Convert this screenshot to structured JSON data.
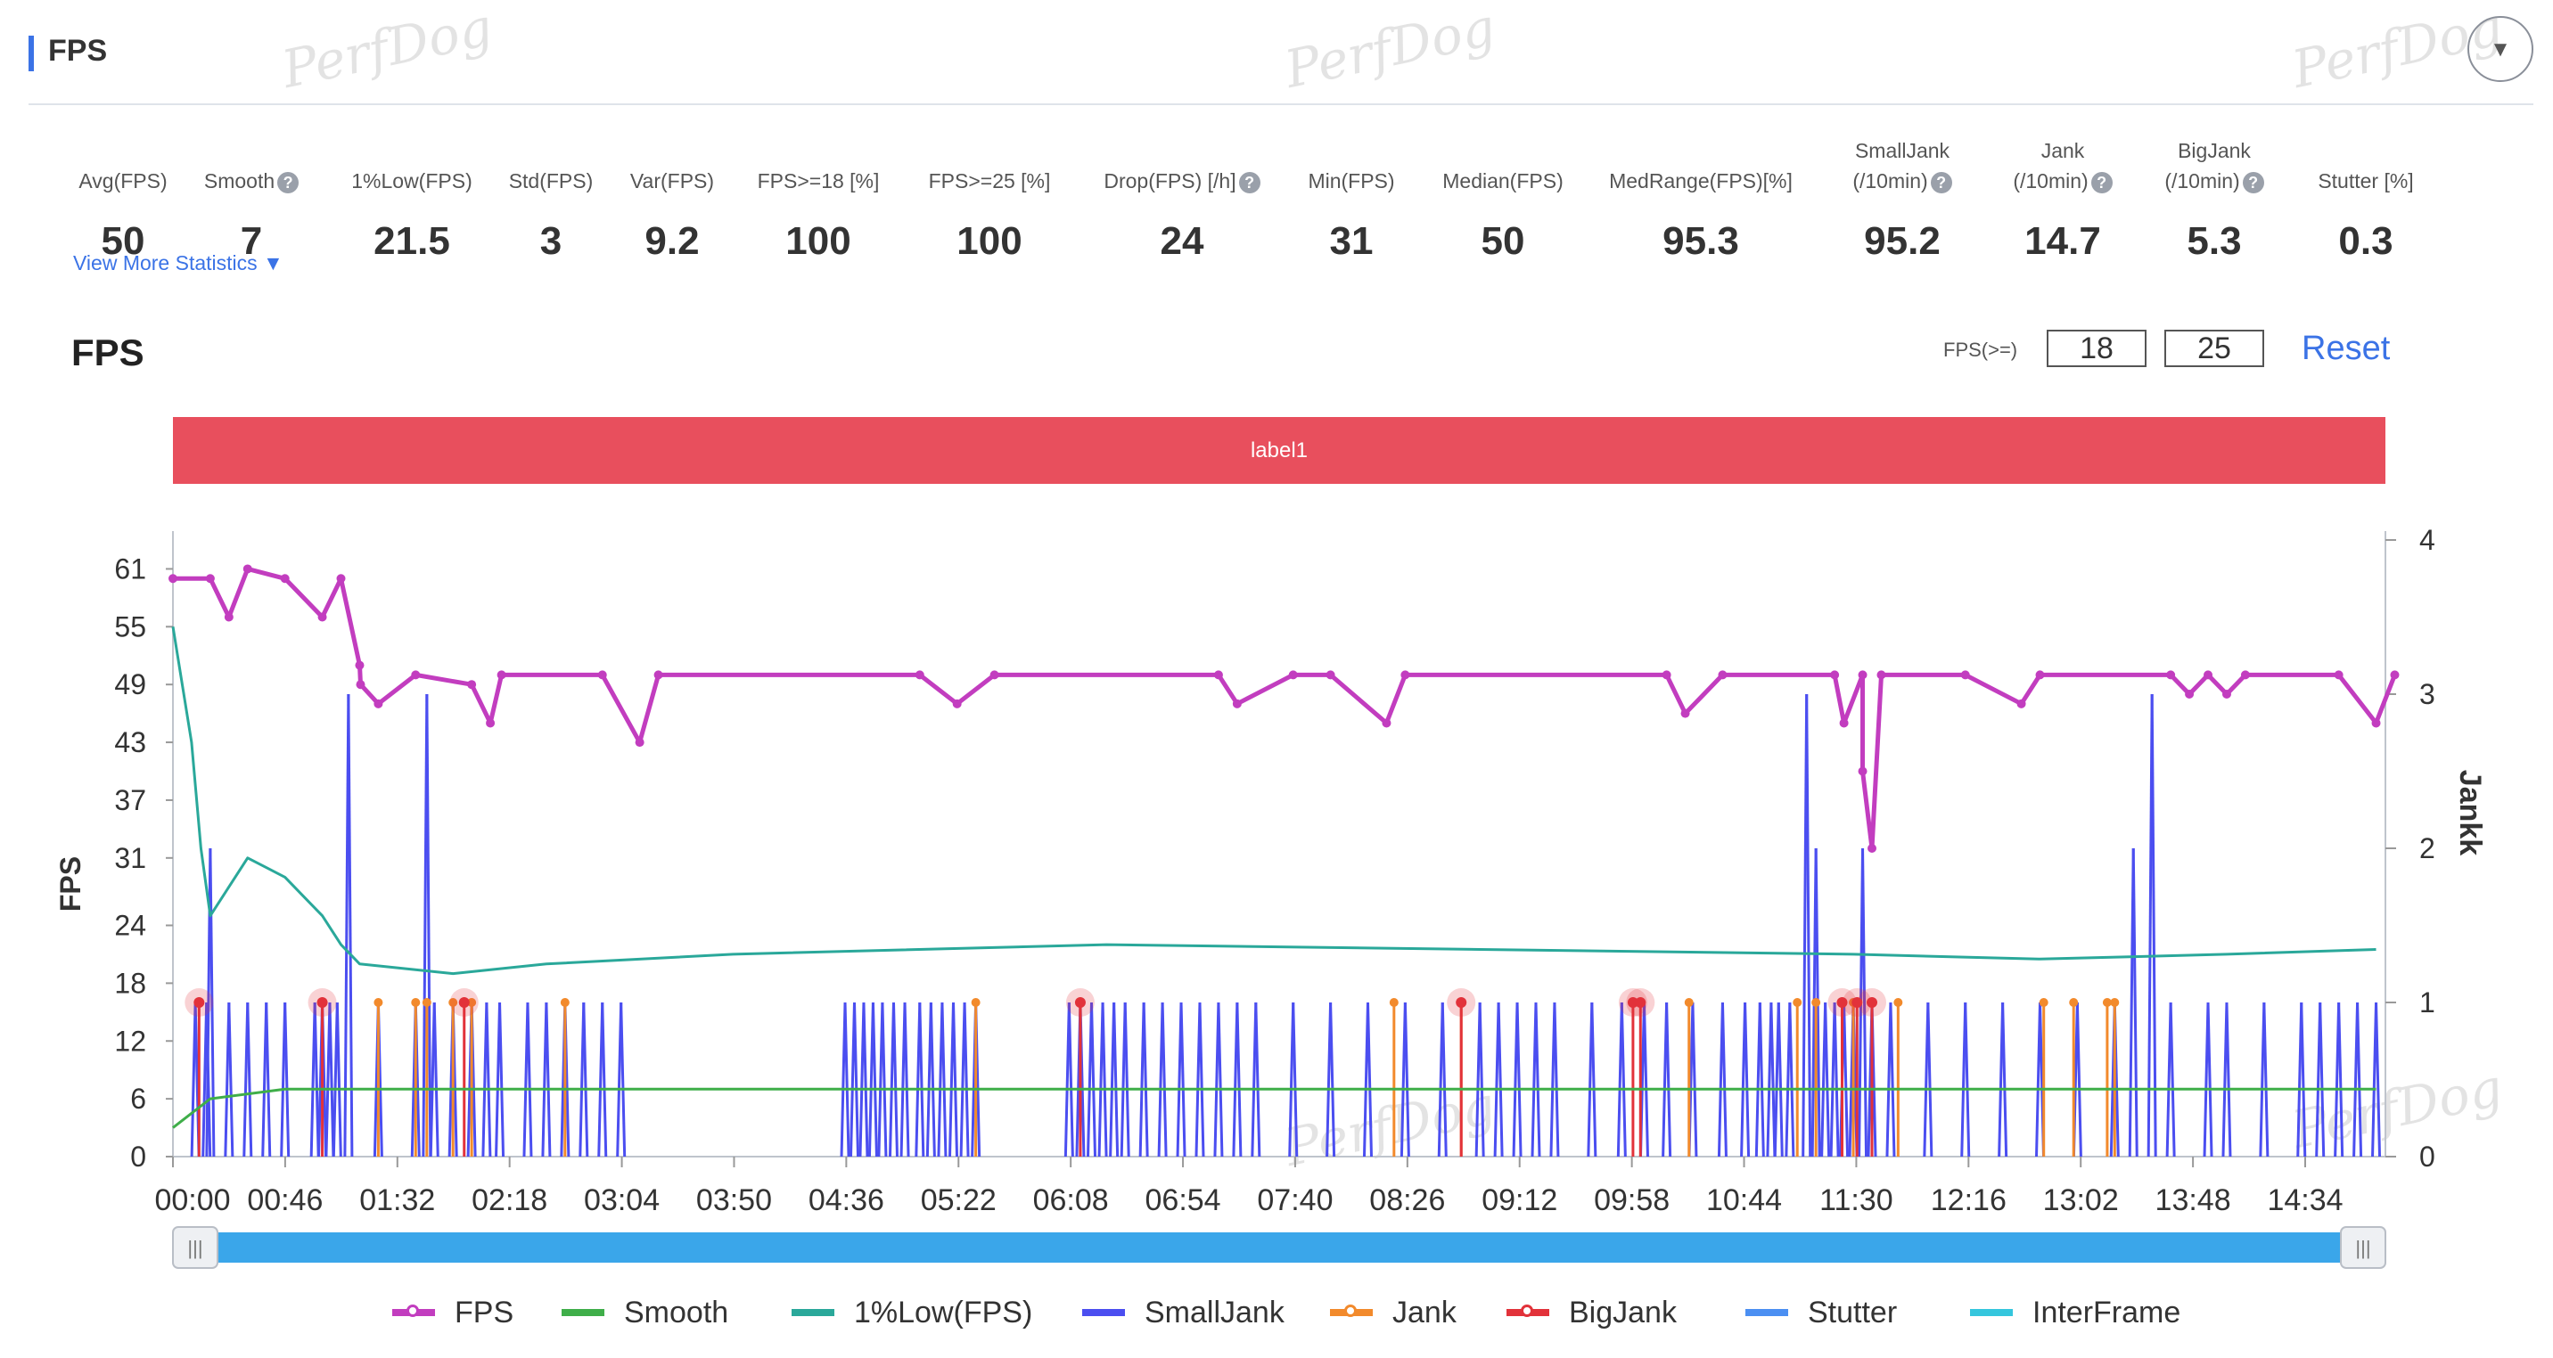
{
  "header": {
    "title": "FPS"
  },
  "watermark": "PerfDog",
  "stats": [
    {
      "label": "Avg(FPS)",
      "value": "50",
      "help": false
    },
    {
      "label": "Smooth",
      "value": "7",
      "help": true
    },
    {
      "label": "1%Low(FPS)",
      "value": "21.5",
      "help": false
    },
    {
      "label": "Std(FPS)",
      "value": "3",
      "help": false
    },
    {
      "label": "Var(FPS)",
      "value": "9.2",
      "help": false
    },
    {
      "label": "FPS>=18 [%]",
      "value": "100",
      "help": false
    },
    {
      "label": "FPS>=25 [%]",
      "value": "100",
      "help": false
    },
    {
      "label": "Drop(FPS) [/h]",
      "value": "24",
      "help": true
    },
    {
      "label": "Min(FPS)",
      "value": "31",
      "help": false
    },
    {
      "label": "Median(FPS)",
      "value": "50",
      "help": false
    },
    {
      "label": "MedRange(FPS)[%]",
      "value": "95.3",
      "help": false
    },
    {
      "label": "SmallJank",
      "label2": "(/10min)",
      "value": "95.2",
      "help": true
    },
    {
      "label": "Jank",
      "label2": "(/10min)",
      "value": "14.7",
      "help": true
    },
    {
      "label": "BigJank",
      "label2": "(/10min)",
      "value": "5.3",
      "help": true
    },
    {
      "label": "Stutter [%]",
      "value": "0.3",
      "help": false
    }
  ],
  "view_more": "View More Statistics ▼",
  "chart_title": "FPS",
  "threshold": {
    "label": "FPS(>=)",
    "low": "18",
    "high": "25"
  },
  "reset": "Reset",
  "label_band": "label1",
  "colors": {
    "fps": "#c23dbf",
    "smooth": "#3fae49",
    "low1": "#2aa89a",
    "smalljank": "#4b4ef0",
    "jank": "#f28a2c",
    "bigjank": "#e2323a",
    "stutter": "#4b8ff2",
    "interframe": "#35c6dd",
    "accent": "#3b73e6",
    "band": "#e84f5d",
    "slider": "#3aa6ea"
  },
  "chart_data": {
    "type": "line",
    "x_unit": "mm:ss",
    "x_ticks": [
      "00:00",
      "00:46",
      "01:32",
      "02:18",
      "03:04",
      "03:50",
      "04:36",
      "05:22",
      "06:08",
      "06:54",
      "07:40",
      "08:26",
      "09:12",
      "09:58",
      "10:44",
      "11:30",
      "12:16",
      "13:02",
      "13:48",
      "14:34"
    ],
    "ylabel": "FPS",
    "y_ticks": [
      0,
      6,
      12,
      18,
      24,
      31,
      37,
      43,
      49,
      55,
      61
    ],
    "ylim": [
      0,
      64
    ],
    "y2label": "Jankk",
    "y2_ticks": [
      0,
      1,
      2,
      3,
      4
    ],
    "y2lim": [
      0,
      4
    ],
    "series": [
      {
        "name": "FPS",
        "axis": "left",
        "points": [
          [
            0,
            60
          ],
          [
            20,
            60
          ],
          [
            30,
            56
          ],
          [
            40,
            61
          ],
          [
            60,
            60
          ],
          [
            80,
            56
          ],
          [
            90,
            60
          ],
          [
            100,
            51
          ],
          [
            100.5,
            49
          ],
          [
            110,
            47
          ],
          [
            130,
            50
          ],
          [
            160,
            49
          ],
          [
            170,
            45
          ],
          [
            176,
            50
          ],
          [
            230,
            50
          ],
          [
            250,
            43
          ],
          [
            260,
            50
          ],
          [
            400,
            50
          ],
          [
            420,
            47
          ],
          [
            440,
            50
          ],
          [
            560,
            50
          ],
          [
            570,
            47
          ],
          [
            600,
            50
          ],
          [
            620,
            50
          ],
          [
            650,
            45
          ],
          [
            660,
            50
          ],
          [
            800,
            50
          ],
          [
            810,
            46
          ],
          [
            830,
            50
          ],
          [
            890,
            50
          ],
          [
            895,
            45
          ],
          [
            905,
            50
          ],
          [
            905,
            40
          ],
          [
            910,
            32
          ],
          [
            915,
            50
          ],
          [
            960,
            50
          ],
          [
            990,
            47
          ],
          [
            1000,
            50
          ],
          [
            1070,
            50
          ],
          [
            1080,
            48
          ],
          [
            1090,
            50
          ],
          [
            1100,
            48
          ],
          [
            1110,
            50
          ],
          [
            1160,
            50
          ],
          [
            1180,
            45
          ],
          [
            1190,
            50
          ]
        ]
      },
      {
        "name": "Smooth",
        "axis": "left",
        "points": [
          [
            0,
            3
          ],
          [
            20,
            6
          ],
          [
            60,
            7
          ],
          [
            200,
            7
          ],
          [
            250,
            7
          ],
          [
            400,
            7
          ],
          [
            600,
            7
          ],
          [
            900,
            7
          ],
          [
            1100,
            7
          ],
          [
            1180,
            7
          ]
        ]
      },
      {
        "name": "1%Low(FPS)",
        "axis": "left",
        "points": [
          [
            0,
            55
          ],
          [
            10,
            43
          ],
          [
            15,
            32
          ],
          [
            20,
            25
          ],
          [
            30,
            28
          ],
          [
            40,
            31
          ],
          [
            50,
            30
          ],
          [
            60,
            29
          ],
          [
            70,
            27
          ],
          [
            80,
            25
          ],
          [
            90,
            22
          ],
          [
            100,
            20
          ],
          [
            150,
            19
          ],
          [
            200,
            20
          ],
          [
            300,
            21
          ],
          [
            500,
            22
          ],
          [
            700,
            21.5
          ],
          [
            900,
            21
          ],
          [
            1000,
            20.5
          ],
          [
            1100,
            21
          ],
          [
            1180,
            21.5
          ]
        ]
      },
      {
        "name": "SmallJank",
        "axis": "right",
        "spikes": [
          [
            12,
            1
          ],
          [
            18,
            1
          ],
          [
            20,
            2
          ],
          [
            30,
            1
          ],
          [
            40,
            1
          ],
          [
            50,
            1
          ],
          [
            60,
            1
          ],
          [
            76,
            1
          ],
          [
            80,
            1
          ],
          [
            84,
            1
          ],
          [
            88,
            1
          ],
          [
            94,
            3
          ],
          [
            110,
            1
          ],
          [
            130,
            1
          ],
          [
            136,
            3
          ],
          [
            140,
            1
          ],
          [
            150,
            1
          ],
          [
            160,
            1
          ],
          [
            168,
            1
          ],
          [
            175,
            1
          ],
          [
            190,
            1
          ],
          [
            200,
            1
          ],
          [
            210,
            1
          ],
          [
            220,
            1
          ],
          [
            230,
            1
          ],
          [
            240,
            1
          ],
          [
            360,
            1
          ],
          [
            365,
            1
          ],
          [
            370,
            1
          ],
          [
            375,
            1
          ],
          [
            380,
            1
          ],
          [
            386,
            1
          ],
          [
            392,
            1
          ],
          [
            400,
            1
          ],
          [
            406,
            1
          ],
          [
            412,
            1
          ],
          [
            418,
            1
          ],
          [
            424,
            1
          ],
          [
            430,
            1
          ],
          [
            480,
            1
          ],
          [
            486,
            1
          ],
          [
            492,
            1
          ],
          [
            498,
            1
          ],
          [
            504,
            1
          ],
          [
            510,
            1
          ],
          [
            520,
            1
          ],
          [
            530,
            1
          ],
          [
            540,
            1
          ],
          [
            550,
            1
          ],
          [
            560,
            1
          ],
          [
            570,
            1
          ],
          [
            580,
            1
          ],
          [
            600,
            1
          ],
          [
            620,
            1
          ],
          [
            640,
            1
          ],
          [
            660,
            1
          ],
          [
            680,
            1
          ],
          [
            700,
            1
          ],
          [
            710,
            1
          ],
          [
            720,
            1
          ],
          [
            730,
            1
          ],
          [
            740,
            1
          ],
          [
            760,
            1
          ],
          [
            776,
            1
          ],
          [
            788,
            1
          ],
          [
            800,
            1
          ],
          [
            814,
            1
          ],
          [
            830,
            1
          ],
          [
            842,
            1
          ],
          [
            850,
            1
          ],
          [
            856,
            1
          ],
          [
            860,
            1
          ],
          [
            866,
            1
          ],
          [
            875,
            3
          ],
          [
            880,
            2
          ],
          [
            885,
            1
          ],
          [
            890,
            1
          ],
          [
            895,
            1
          ],
          [
            900,
            1
          ],
          [
            905,
            2
          ],
          [
            910,
            1
          ],
          [
            920,
            1
          ],
          [
            940,
            1
          ],
          [
            960,
            1
          ],
          [
            980,
            1
          ],
          [
            1000,
            1
          ],
          [
            1020,
            1
          ],
          [
            1040,
            1
          ],
          [
            1050,
            2
          ],
          [
            1060,
            3
          ],
          [
            1070,
            1
          ],
          [
            1090,
            1
          ],
          [
            1100,
            1
          ],
          [
            1120,
            1
          ],
          [
            1140,
            1
          ],
          [
            1150,
            1
          ],
          [
            1160,
            1
          ],
          [
            1170,
            1
          ],
          [
            1180,
            1
          ]
        ]
      },
      {
        "name": "Jank",
        "axis": "right",
        "spikes": [
          [
            110,
            1
          ],
          [
            130,
            1
          ],
          [
            136,
            1
          ],
          [
            150,
            1
          ],
          [
            160,
            1
          ],
          [
            210,
            1
          ],
          [
            430,
            1
          ],
          [
            486,
            1
          ],
          [
            654,
            1
          ],
          [
            690,
            1
          ],
          [
            812,
            1
          ],
          [
            870,
            1
          ],
          [
            880,
            1
          ],
          [
            900,
            1
          ],
          [
            924,
            1
          ],
          [
            1002,
            1
          ],
          [
            1018,
            1
          ],
          [
            1036,
            1
          ],
          [
            1040,
            1
          ]
        ]
      },
      {
        "name": "BigJank",
        "axis": "right",
        "spikes": [
          [
            14,
            1
          ],
          [
            80,
            1
          ],
          [
            156,
            1
          ],
          [
            486,
            1
          ],
          [
            690,
            1
          ],
          [
            782,
            1
          ],
          [
            786,
            1
          ],
          [
            894,
            1
          ],
          [
            902,
            1
          ],
          [
            910,
            1
          ]
        ]
      },
      {
        "name": "Stutter",
        "axis": "right",
        "spikes": []
      },
      {
        "name": "InterFrame",
        "axis": "right",
        "spikes": []
      }
    ]
  },
  "legend": [
    {
      "label": "FPS",
      "key": "fps",
      "marker": "ring"
    },
    {
      "label": "Smooth",
      "key": "smooth",
      "marker": "none"
    },
    {
      "label": "1%Low(FPS)",
      "key": "low1",
      "marker": "none"
    },
    {
      "label": "SmallJank",
      "key": "smalljank",
      "marker": "none"
    },
    {
      "label": "Jank",
      "key": "jank",
      "marker": "ring"
    },
    {
      "label": "BigJank",
      "key": "bigjank",
      "marker": "ring"
    },
    {
      "label": "Stutter",
      "key": "stutter",
      "marker": "none"
    },
    {
      "label": "InterFrame",
      "key": "interframe",
      "marker": "none"
    }
  ],
  "slider": {
    "left_handle": "|||",
    "right_handle": "|||"
  }
}
